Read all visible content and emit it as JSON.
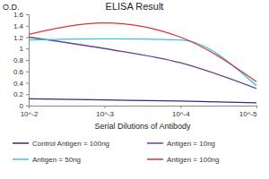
{
  "chart_data": {
    "type": "line",
    "title": "ELISA Result",
    "y_label": "O.D.",
    "x_label": "Serial Dilutions of Antibody",
    "log": "x",
    "x": [
      0.01,
      0.001,
      0.0001,
      1e-05
    ],
    "xlim": [
      0.01,
      1e-05
    ],
    "xticks": [
      {
        "value": 0.01,
        "label": "10^-2"
      },
      {
        "value": 0.001,
        "label": "10^-3"
      },
      {
        "value": 0.0001,
        "label": "10^-4"
      },
      {
        "value": 1e-05,
        "label": "10^-5"
      }
    ],
    "ylim": [
      0,
      1.6
    ],
    "yticks": [
      0,
      0.2,
      0.4,
      0.6,
      0.8,
      1,
      1.2,
      1.4,
      1.6
    ],
    "grid": false,
    "legend": "bottom",
    "series": [
      {
        "name": "Control Antigen = 100ng",
        "color": "#2e2e80",
        "values": [
          0.12,
          0.1,
          0.08,
          0.05
        ]
      },
      {
        "name": "Antigen = 10ng",
        "color": "#6a3d9a",
        "values": [
          1.2,
          1.0,
          0.75,
          0.3
        ]
      },
      {
        "name": "Antigen = 50ng",
        "color": "#3ec3e0",
        "values": [
          1.15,
          1.17,
          1.15,
          0.35
        ]
      },
      {
        "name": "Antigen = 100ng",
        "color": "#e0303a",
        "values": [
          1.25,
          1.45,
          1.2,
          0.42
        ]
      }
    ]
  }
}
